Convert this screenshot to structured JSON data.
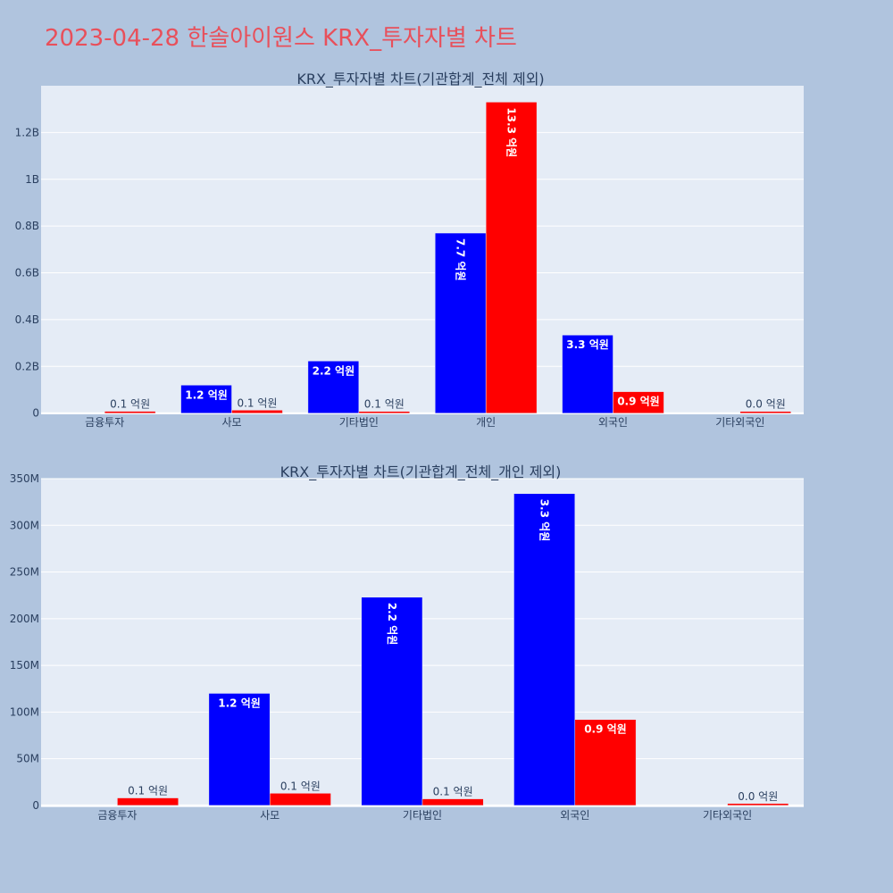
{
  "page_title": "2023-04-28 한솔아이원스 KRX_투자자별 차트",
  "colors": {
    "buy": "#0000ff",
    "sell": "#ff0000",
    "plot_bg": "#e5ecf6",
    "page_bg": "#b0c4de"
  },
  "chart_data": [
    {
      "type": "bar",
      "title": "KRX_투자자별 차트(기관합계_전체 제외)",
      "categories": [
        "금융투자",
        "사모",
        "기타법인",
        "개인",
        "외국인",
        "기타외국인"
      ],
      "series": [
        {
          "values": [
            0,
            120000000,
            223000000,
            770000000,
            334000000,
            0
          ],
          "labels": [
            "",
            "1.2 억원",
            "2.2 억원",
            "7.7 억원",
            "3.3 억원",
            ""
          ]
        },
        {
          "values": [
            8000000,
            13000000,
            7000000,
            1330000000,
            92000000,
            2000000
          ],
          "labels": [
            "0.1 억원",
            "0.1 억원",
            "0.1 억원",
            "13.3 억원",
            "0.9 억원",
            "0.0 억원"
          ]
        }
      ],
      "ylim": [
        -5000000,
        1400000000
      ],
      "yticks": [
        0,
        200000000,
        400000000,
        600000000,
        800000000,
        1000000000,
        1200000000
      ],
      "yticklabels": [
        "0",
        "0.2B",
        "0.4B",
        "0.6B",
        "0.8B",
        "1B",
        "1.2B"
      ],
      "grid": true
    },
    {
      "type": "bar",
      "title": "KRX_투자자별 차트(기관합계_전체_개인 제외)",
      "categories": [
        "금융투자",
        "사모",
        "기타법인",
        "외국인",
        "기타외국인"
      ],
      "series": [
        {
          "values": [
            0,
            120000000,
            223000000,
            334000000,
            0
          ],
          "labels": [
            "",
            "1.2 억원",
            "2.2 억원",
            "3.3 억원",
            ""
          ]
        },
        {
          "values": [
            8000000,
            13000000,
            7000000,
            92000000,
            2000000
          ],
          "labels": [
            "0.1 억원",
            "0.1 억원",
            "0.1 억원",
            "0.9 억원",
            "0.0 억원"
          ]
        }
      ],
      "ylim": [
        -2000000,
        350000000
      ],
      "yticks": [
        0,
        50000000,
        100000000,
        150000000,
        200000000,
        250000000,
        300000000,
        350000000
      ],
      "yticklabels": [
        "0",
        "50M",
        "100M",
        "150M",
        "200M",
        "250M",
        "300M",
        "350M"
      ],
      "grid": true
    }
  ]
}
